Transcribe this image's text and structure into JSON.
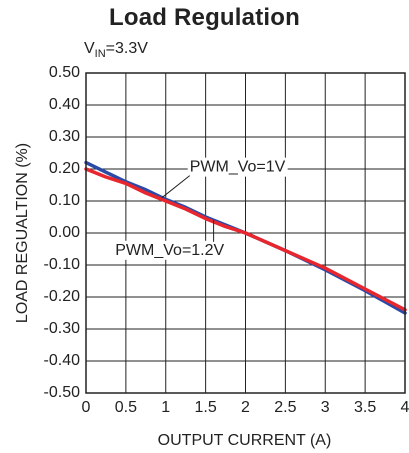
{
  "title": "Load Regulation",
  "condition": {
    "prefix": "V",
    "subscript": "IN",
    "suffix": "=3.3V"
  },
  "chart_data": {
    "type": "line",
    "title": "Load Regulation",
    "xlabel": "OUTPUT CURRENT (A)",
    "ylabel": "LOAD REGUALTION (%)",
    "xlim": [
      0,
      4
    ],
    "ylim": [
      -0.5,
      0.5
    ],
    "grid": true,
    "x_ticks": [
      0,
      0.5,
      1,
      1.5,
      2,
      2.5,
      3,
      3.5,
      4
    ],
    "x_tick_labels": [
      "0",
      "0.5",
      "1",
      "1.5",
      "2",
      "2.5",
      "3",
      "3.5",
      "4"
    ],
    "y_ticks": [
      0.5,
      0.4,
      0.3,
      0.2,
      0.1,
      0,
      -0.1,
      -0.2,
      -0.3,
      -0.4,
      -0.5
    ],
    "y_tick_labels": [
      "0.50",
      "0.40",
      "0.30",
      "0.20",
      "0.10",
      "0.00",
      "-0.10",
      "-0.20",
      "-0.30",
      "-0.40",
      "-0.50"
    ],
    "series": [
      {
        "name": "PWM_Vo=1V",
        "color": "#2a4aa8",
        "x": [
          0,
          0.25,
          0.5,
          0.75,
          1,
          1.25,
          1.5,
          1.75,
          2,
          2.5,
          3,
          3.5,
          4
        ],
        "y": [
          0.22,
          0.19,
          0.16,
          0.135,
          0.105,
          0.08,
          0.05,
          0.025,
          0,
          -0.055,
          -0.115,
          -0.18,
          -0.25
        ]
      },
      {
        "name": "PWM_Vo=1.2V",
        "color": "#e8262d",
        "x": [
          0,
          0.25,
          0.5,
          0.75,
          1,
          1.25,
          1.5,
          1.75,
          2,
          2.5,
          3,
          3.5,
          4
        ],
        "y": [
          0.2,
          0.175,
          0.155,
          0.125,
          0.1,
          0.075,
          0.045,
          0.02,
          0,
          -0.055,
          -0.11,
          -0.175,
          -0.24
        ]
      }
    ],
    "annotations": [
      {
        "text": "PWM_Vo=1V",
        "x": 1.9,
        "y": 0.205,
        "target_x": 0.95,
        "target_y": 0.11
      },
      {
        "text": "PWM_Vo=1.2V",
        "x": 1.05,
        "y": -0.055,
        "target_x": 1.6,
        "target_y": 0.04
      }
    ]
  }
}
